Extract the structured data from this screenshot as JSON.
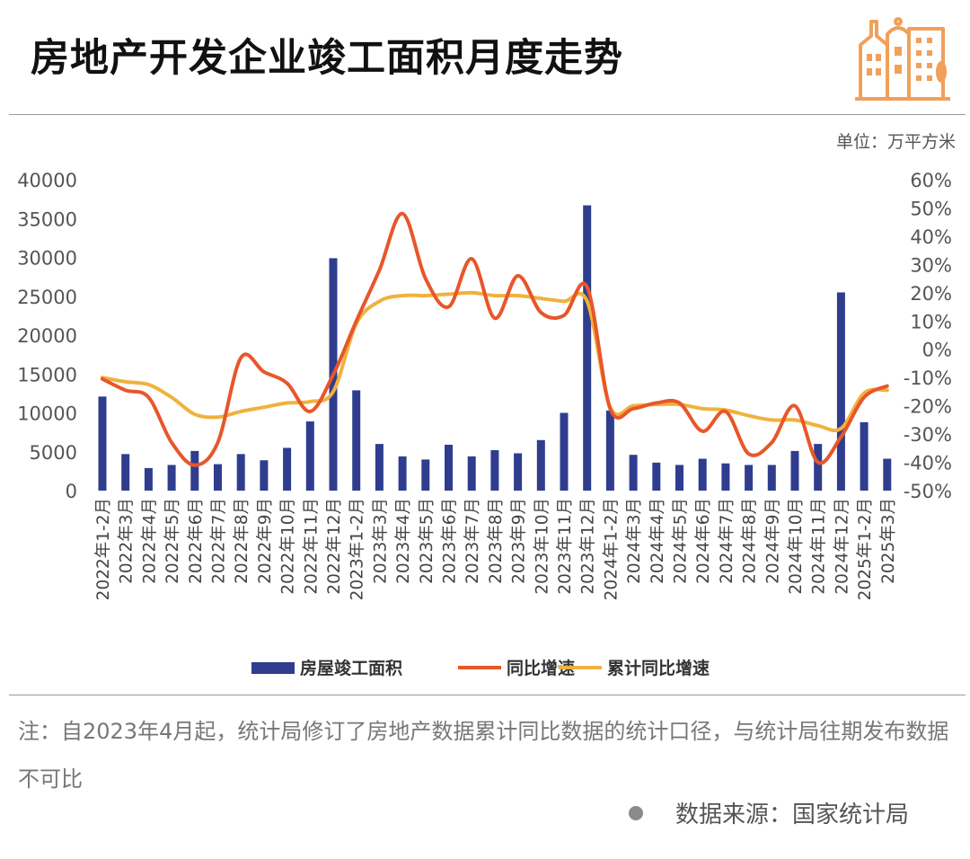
{
  "header": {
    "title": "房地产开发企业竣工面积月度走势",
    "logo_icon": "building-logo-icon"
  },
  "unit_label": "单位：万平方米",
  "chart_data": {
    "type": "bar",
    "title": "房地产开发企业竣工面积月度走势",
    "categories": [
      "2022年1-2月",
      "2022年3月",
      "2022年4月",
      "2022年5月",
      "2022年6月",
      "2022年7月",
      "2022年8月",
      "2022年9月",
      "2022年10月",
      "2022年11月",
      "2022年12月",
      "2023年1-2月",
      "2023年3月",
      "2023年4月",
      "2023年5月",
      "2023年6月",
      "2023年7月",
      "2023年8月",
      "2023年9月",
      "2023年10月",
      "2023年11月",
      "2023年12月",
      "2024年1-2月",
      "2024年3月",
      "2024年4月",
      "2024年5月",
      "2024年6月",
      "2024年7月",
      "2024年8月",
      "2024年9月",
      "2024年10月",
      "2024年11月",
      "2024年12月",
      "2025年1-2月",
      "2025年3月"
    ],
    "series": [
      {
        "name": "房屋竣工面积",
        "type": "bar",
        "axis": "left",
        "color": "#2f3d8f",
        "values": [
          12100,
          4700,
          2900,
          3300,
          5100,
          3400,
          4700,
          3900,
          5500,
          8900,
          29900,
          12900,
          6000,
          4400,
          4000,
          5900,
          4400,
          5200,
          4800,
          6500,
          10000,
          36700,
          10300,
          4600,
          3600,
          3300,
          4100,
          3500,
          3300,
          3300,
          5100,
          6000,
          25500,
          8800,
          4100
        ]
      },
      {
        "name": "同比增速",
        "type": "line",
        "axis": "right",
        "color": "#e8562a",
        "values": [
          -10.5,
          -14.5,
          -17,
          -33,
          -41,
          -33,
          -3,
          -8,
          -12,
          -22,
          -9,
          10,
          28,
          48,
          25,
          15,
          32,
          11,
          26,
          13,
          12,
          22,
          -21,
          -21,
          -19,
          -19,
          -29,
          -22,
          -37,
          -33,
          -20,
          -40,
          -31,
          -17,
          -13
        ]
      },
      {
        "name": "累计同比增速",
        "type": "line",
        "axis": "right",
        "color": "#f0b23c",
        "values": [
          -10,
          -11.5,
          -12.5,
          -17,
          -23,
          -24,
          -22,
          -20.5,
          -19,
          -18.5,
          -15,
          9,
          17,
          19,
          19,
          19.5,
          20,
          19,
          19,
          18,
          17,
          17,
          -20.5,
          -20,
          -19.5,
          -19.5,
          -21,
          -21.5,
          -23.5,
          -25,
          -25,
          -27,
          -28,
          -15.5,
          -14.5
        ]
      }
    ],
    "y_left": {
      "min": 0,
      "max": 40000,
      "ticks": [
        "0",
        "5000",
        "10000",
        "15000",
        "20000",
        "25000",
        "30000",
        "35000",
        "40000"
      ]
    },
    "y_right": {
      "min": -50,
      "max": 60,
      "ticks": [
        "-50%",
        "-40%",
        "-30%",
        "-20%",
        "-10%",
        "0%",
        "10%",
        "20%",
        "30%",
        "40%",
        "50%",
        "60%"
      ]
    },
    "grid": false,
    "legend": "bottom-center"
  },
  "legend": {
    "items": [
      {
        "label": "房屋竣工面积",
        "color": "#2f3d8f",
        "kind": "bar"
      },
      {
        "label": "同比增速",
        "color": "#e8562a",
        "kind": "line"
      },
      {
        "label": "累计同比增速",
        "color": "#f0b23c",
        "kind": "line"
      }
    ]
  },
  "note": "注：自2023年4月起，统计局修订了房地产数据累计同比数据的统计口径，与统计局往期发布数据不可比",
  "source": "数据来源：国家统计局",
  "colors": {
    "logo": "#f0a05a",
    "axis": "#555555"
  }
}
